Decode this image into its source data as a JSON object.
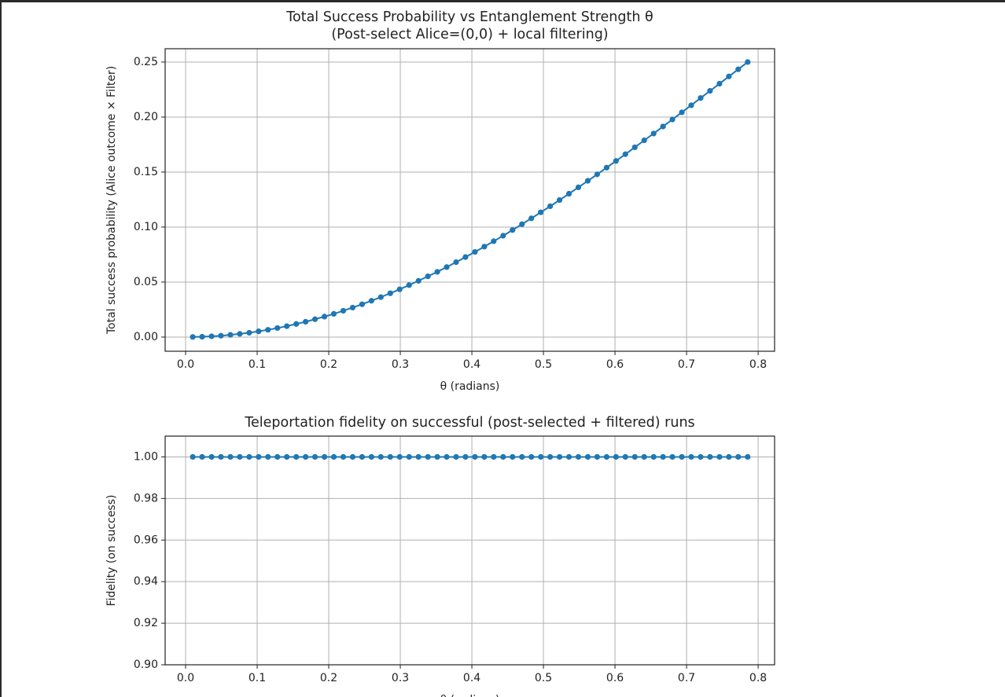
{
  "chart_data": [
    {
      "type": "line",
      "title": "Total Success Probability vs Entanglement Strength θ",
      "subtitle": "(Post-select Alice=(0,0) + local filtering)",
      "x_label": "θ (radians)",
      "y_label": "Total success probability (Alice outcome × Filter)",
      "color": "#1f77b4",
      "grid": true,
      "markers": true,
      "x": [
        0.01,
        0.0231,
        0.0363,
        0.0494,
        0.0626,
        0.0757,
        0.0889,
        0.102,
        0.1151,
        0.1283,
        0.1414,
        0.1546,
        0.1677,
        0.1808,
        0.194,
        0.2071,
        0.2203,
        0.2334,
        0.2466,
        0.2597,
        0.2728,
        0.286,
        0.2991,
        0.3123,
        0.3254,
        0.3386,
        0.3517,
        0.3648,
        0.378,
        0.3911,
        0.4043,
        0.4174,
        0.4305,
        0.4437,
        0.4568,
        0.47,
        0.4831,
        0.4963,
        0.5094,
        0.5225,
        0.5357,
        0.5488,
        0.562,
        0.5751,
        0.5883,
        0.6014,
        0.6145,
        0.6277,
        0.6408,
        0.654,
        0.6671,
        0.6802,
        0.6934,
        0.7065,
        0.7197,
        0.7328,
        0.746,
        0.7591,
        0.7722,
        0.7854
      ],
      "values": [
        0.0001,
        0.0003,
        0.0007,
        0.0012,
        0.002,
        0.0029,
        0.0039,
        0.0052,
        0.0066,
        0.0082,
        0.0099,
        0.0119,
        0.0139,
        0.0162,
        0.0186,
        0.0211,
        0.0239,
        0.0268,
        0.0298,
        0.033,
        0.0363,
        0.0398,
        0.0434,
        0.0472,
        0.0511,
        0.0552,
        0.0593,
        0.0636,
        0.0681,
        0.0727,
        0.0774,
        0.0822,
        0.0871,
        0.0921,
        0.0973,
        0.1026,
        0.1079,
        0.1134,
        0.1189,
        0.1245,
        0.1303,
        0.1361,
        0.142,
        0.1479,
        0.154,
        0.1601,
        0.1662,
        0.1725,
        0.1788,
        0.185,
        0.1914,
        0.1978,
        0.2043,
        0.2107,
        0.2173,
        0.2238,
        0.2303,
        0.2369,
        0.2434,
        0.25
      ],
      "xlim": [
        -0.0286,
        0.823
      ],
      "ylim": [
        -0.0129,
        0.2621
      ],
      "xticks": [
        {
          "value": 0,
          "label": "0.0"
        },
        0.1,
        0.2,
        0.3,
        0.4,
        0.5,
        0.6,
        0.7,
        0.8
      ],
      "yticks": [
        {
          "value": 0,
          "label": "0.00"
        },
        0.05,
        {
          "value": 0.1,
          "label": "0.10"
        },
        0.15,
        {
          "value": 0.2,
          "label": "0.20"
        },
        0.25
      ]
    },
    {
      "type": "line",
      "title": "Teleportation fidelity on successful (post-selected + filtered) runs",
      "x_label": "θ (radians)",
      "y_label": "Fidelity (on success)",
      "color": "#1f77b4",
      "grid": true,
      "markers": true,
      "x": [
        0.01,
        0.0231,
        0.0363,
        0.0494,
        0.0626,
        0.0757,
        0.0889,
        0.102,
        0.1151,
        0.1283,
        0.1414,
        0.1546,
        0.1677,
        0.1808,
        0.194,
        0.2071,
        0.2203,
        0.2334,
        0.2466,
        0.2597,
        0.2728,
        0.286,
        0.2991,
        0.3123,
        0.3254,
        0.3386,
        0.3517,
        0.3648,
        0.378,
        0.3911,
        0.4043,
        0.4174,
        0.4305,
        0.4437,
        0.4568,
        0.47,
        0.4831,
        0.4963,
        0.5094,
        0.5225,
        0.5357,
        0.5488,
        0.562,
        0.5751,
        0.5883,
        0.6014,
        0.6145,
        0.6277,
        0.6408,
        0.654,
        0.6671,
        0.6802,
        0.6934,
        0.7065,
        0.7197,
        0.7328,
        0.746,
        0.7591,
        0.7722,
        0.7854
      ],
      "values": [
        1,
        1,
        1,
        1,
        1,
        1,
        1,
        1,
        1,
        1,
        1,
        1,
        1,
        1,
        1,
        1,
        1,
        1,
        1,
        1,
        1,
        1,
        1,
        1,
        1,
        1,
        1,
        1,
        1,
        1,
        1,
        1,
        1,
        1,
        1,
        1,
        1,
        1,
        1,
        1,
        1,
        1,
        1,
        1,
        1,
        1,
        1,
        1,
        1,
        1,
        1,
        1,
        1,
        1,
        1,
        1,
        1,
        1,
        1,
        1
      ],
      "xlim": [
        -0.0286,
        0.823
      ],
      "ylim": [
        0.9,
        1.01
      ],
      "xticks": [
        {
          "value": 0,
          "label": "0.0"
        },
        0.1,
        0.2,
        0.3,
        0.4,
        0.5,
        0.6,
        0.7,
        0.8
      ],
      "yticks": [
        {
          "value": 0.9,
          "label": "0.90"
        },
        0.92,
        0.94,
        0.96,
        0.98,
        {
          "value": 1,
          "label": "1.00"
        }
      ]
    }
  ]
}
